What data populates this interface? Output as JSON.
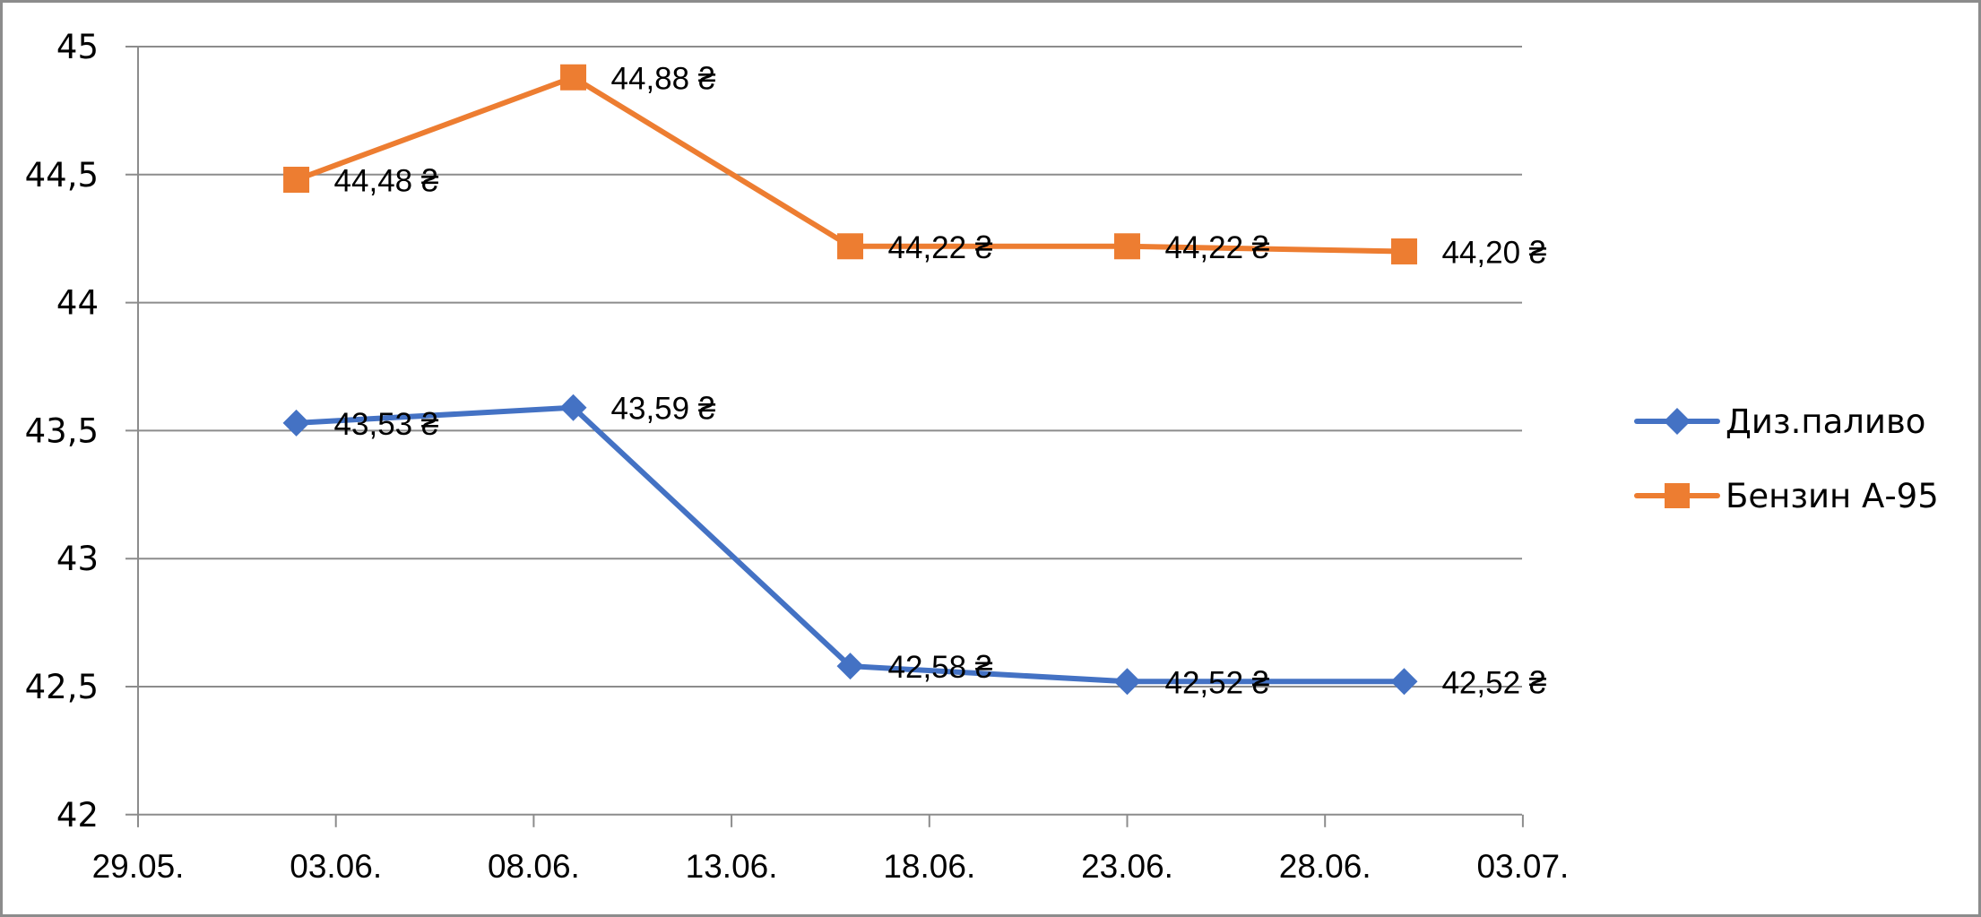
{
  "chart_data": {
    "type": "line",
    "title": "",
    "xlabel": "",
    "ylabel": "",
    "ylim": [
      42,
      45
    ],
    "y_ticks": [
      42,
      42.5,
      43,
      43.5,
      44,
      44.5,
      45
    ],
    "y_tick_labels": [
      "42",
      "42,5",
      "43",
      "43,5",
      "44",
      "44,5",
      "45"
    ],
    "x_ticks": [
      "29.05.",
      "03.06.",
      "08.06.",
      "13.06.",
      "18.06.",
      "23.06.",
      "28.06.",
      "03.07."
    ],
    "x_tick_days": [
      0,
      5,
      10,
      15,
      20,
      25,
      30,
      35
    ],
    "x": [
      "02.06.",
      "09.06.",
      "16.06.",
      "23.06.",
      "30.06."
    ],
    "x_days": [
      4,
      11,
      18,
      25,
      32
    ],
    "grid": true,
    "legend_position": "right",
    "series": [
      {
        "name": "Диз.паливо",
        "color": "#4472C4",
        "marker": "diamond",
        "values": [
          43.53,
          43.59,
          42.58,
          42.52,
          42.52
        ],
        "labels": [
          "43,53 ₴",
          "43,59 ₴",
          "42,58 ₴",
          "42,52 ₴",
          "42,52 ₴"
        ]
      },
      {
        "name": "Бензин А-95",
        "color": "#ED7D31",
        "marker": "square",
        "values": [
          44.48,
          44.88,
          44.22,
          44.22,
          44.2
        ],
        "labels": [
          "44,48 ₴",
          "44,88 ₴",
          "44,22 ₴",
          "44,22 ₴",
          "44,20 ₴"
        ]
      }
    ]
  },
  "legend": {
    "items": [
      {
        "label": "Диз.паливо",
        "icon": "diamond-marker-icon"
      },
      {
        "label": "Бензин А-95",
        "icon": "square-marker-icon"
      }
    ]
  },
  "colors": {
    "gridline": "#8c8c8c",
    "axis": "#8c8c8c",
    "frame": "#8c8c8c"
  }
}
